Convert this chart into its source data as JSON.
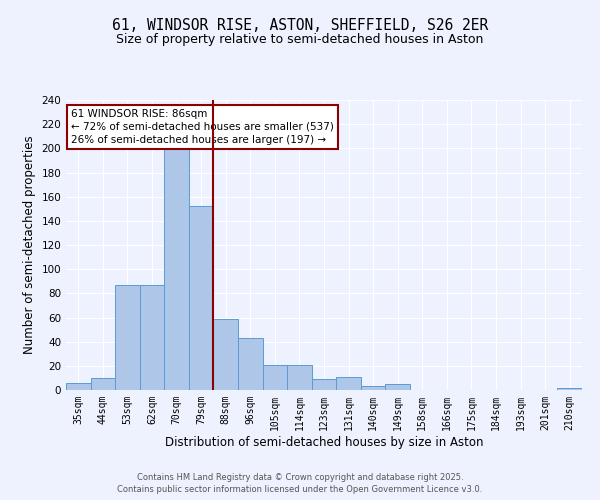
{
  "title": "61, WINDSOR RISE, ASTON, SHEFFIELD, S26 2ER",
  "subtitle": "Size of property relative to semi-detached houses in Aston",
  "xlabel": "Distribution of semi-detached houses by size in Aston",
  "ylabel": "Number of semi-detached properties",
  "footer1": "Contains HM Land Registry data © Crown copyright and database right 2025.",
  "footer2": "Contains public sector information licensed under the Open Government Licence v3.0.",
  "categories": [
    "35sqm",
    "44sqm",
    "53sqm",
    "62sqm",
    "70sqm",
    "79sqm",
    "88sqm",
    "96sqm",
    "105sqm",
    "114sqm",
    "123sqm",
    "131sqm",
    "140sqm",
    "149sqm",
    "158sqm",
    "166sqm",
    "175sqm",
    "184sqm",
    "193sqm",
    "201sqm",
    "210sqm"
  ],
  "values": [
    6,
    10,
    87,
    87,
    200,
    152,
    59,
    43,
    21,
    21,
    9,
    11,
    3,
    5,
    0,
    0,
    0,
    0,
    0,
    0,
    2
  ],
  "bar_color": "#aec6e8",
  "bar_edge_color": "#5b9bd5",
  "property_line_x": 5.5,
  "annotation_title": "61 WINDSOR RISE: 86sqm",
  "annotation_line1": "← 72% of semi-detached houses are smaller (537)",
  "annotation_line2": "26% of semi-detached houses are larger (197) →",
  "vline_color": "darkred",
  "ylim": [
    0,
    240
  ],
  "yticks": [
    0,
    20,
    40,
    60,
    80,
    100,
    120,
    140,
    160,
    180,
    200,
    220,
    240
  ],
  "background_color": "#eef2ff",
  "grid_color": "white",
  "title_fontsize": 10.5,
  "subtitle_fontsize": 9,
  "axis_label_fontsize": 8.5,
  "tick_fontsize": 7,
  "footer_fontsize": 6
}
